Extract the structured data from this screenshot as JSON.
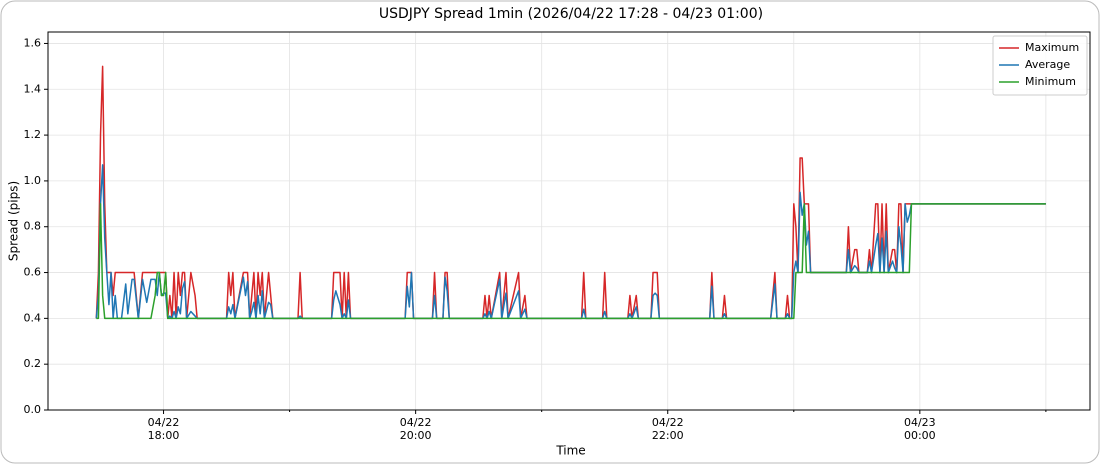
{
  "chart_data": {
    "type": "line",
    "title": "USDJPY Spread 1min (2026/04/22 17:28 - 04/23 01:00)",
    "x_label": "Time",
    "y_label": "Spread (pips)",
    "grid": true,
    "legend": "upper right",
    "xlim": [
      "2026-04-22 17:05",
      "2026-04-23 01:21"
    ],
    "xticks": [
      {
        "value": "2026-04-22 18:00",
        "label": "04/22\n18:00"
      },
      {
        "value": "2026-04-22 20:00",
        "label": "04/22\n20:00"
      },
      {
        "value": "2026-04-22 22:00",
        "label": "04/22\n22:00"
      },
      {
        "value": "2026-04-23 00:00",
        "label": "04/23\n00:00"
      }
    ],
    "xminorticks": [
      "2026-04-22 19:00",
      "2026-04-22 21:00",
      "2026-04-22 23:00",
      "2026-04-23 01:00"
    ],
    "ylim": [
      0,
      1.65
    ],
    "yticks": [
      {
        "value": 0,
        "label": "0.0"
      },
      0.2,
      0.4,
      0.6,
      0.8,
      {
        "value": 1,
        "label": "1.0"
      },
      1.2,
      1.4,
      1.6
    ],
    "x": [
      "2026-04-22 17:28",
      "2026-04-22 17:29",
      "2026-04-22 17:30",
      "2026-04-22 17:31",
      "2026-04-22 17:32",
      "2026-04-22 17:33",
      "2026-04-22 17:34",
      "2026-04-22 17:35",
      "2026-04-22 17:36",
      "2026-04-22 17:37",
      "2026-04-22 17:38",
      "2026-04-22 17:40",
      "2026-04-22 17:42",
      "2026-04-22 17:43",
      "2026-04-22 17:45",
      "2026-04-22 17:46",
      "2026-04-22 17:48",
      "2026-04-22 17:50",
      "2026-04-22 17:52",
      "2026-04-22 17:54",
      "2026-04-22 17:56",
      "2026-04-22 17:57",
      "2026-04-22 17:58",
      "2026-04-22 17:59",
      "2026-04-22 18:00",
      "2026-04-22 18:01",
      "2026-04-22 18:02",
      "2026-04-22 18:03",
      "2026-04-22 18:04",
      "2026-04-22 18:05",
      "2026-04-22 18:06",
      "2026-04-22 18:07",
      "2026-04-22 18:08",
      "2026-04-22 18:09",
      "2026-04-22 18:10",
      "2026-04-22 18:11",
      "2026-04-22 18:13",
      "2026-04-22 18:15",
      "2026-04-22 18:16",
      "2026-04-22 18:30",
      "2026-04-22 18:31",
      "2026-04-22 18:32",
      "2026-04-22 18:33",
      "2026-04-22 18:34",
      "2026-04-22 18:38",
      "2026-04-22 18:39",
      "2026-04-22 18:40",
      "2026-04-22 18:41",
      "2026-04-22 18:42",
      "2026-04-22 18:43",
      "2026-04-22 18:44",
      "2026-04-22 18:45",
      "2026-04-22 18:46",
      "2026-04-22 18:47",
      "2026-04-22 18:48",
      "2026-04-22 18:50",
      "2026-04-22 18:51",
      "2026-04-22 18:52",
      "2026-04-22 19:04",
      "2026-04-22 19:05",
      "2026-04-22 19:06",
      "2026-04-22 19:20",
      "2026-04-22 19:21",
      "2026-04-22 19:22",
      "2026-04-22 19:24",
      "2026-04-22 19:25",
      "2026-04-22 19:26",
      "2026-04-22 19:27",
      "2026-04-22 19:28",
      "2026-04-22 19:29",
      "2026-04-22 19:55",
      "2026-04-22 19:56",
      "2026-04-22 19:57",
      "2026-04-22 19:58",
      "2026-04-22 19:59",
      "2026-04-22 20:08",
      "2026-04-22 20:09",
      "2026-04-22 20:10",
      "2026-04-22 20:13",
      "2026-04-22 20:14",
      "2026-04-22 20:15",
      "2026-04-22 20:16",
      "2026-04-22 20:32",
      "2026-04-22 20:33",
      "2026-04-22 20:34",
      "2026-04-22 20:35",
      "2026-04-22 20:36",
      "2026-04-22 20:40",
      "2026-04-22 20:41",
      "2026-04-22 20:43",
      "2026-04-22 20:44",
      "2026-04-22 20:49",
      "2026-04-22 20:50",
      "2026-04-22 20:52",
      "2026-04-22 20:53",
      "2026-04-22 21:19",
      "2026-04-22 21:20",
      "2026-04-22 21:21",
      "2026-04-22 21:29",
      "2026-04-22 21:30",
      "2026-04-22 21:31",
      "2026-04-22 21:41",
      "2026-04-22 21:42",
      "2026-04-22 21:43",
      "2026-04-22 21:45",
      "2026-04-22 21:46",
      "2026-04-22 21:52",
      "2026-04-22 21:53",
      "2026-04-22 21:54",
      "2026-04-22 21:55",
      "2026-04-22 21:56",
      "2026-04-22 22:20",
      "2026-04-22 22:21",
      "2026-04-22 22:22",
      "2026-04-22 22:26",
      "2026-04-22 22:27",
      "2026-04-22 22:28",
      "2026-04-22 22:49",
      "2026-04-22 22:51",
      "2026-04-22 22:52",
      "2026-04-22 22:56",
      "2026-04-22 22:57",
      "2026-04-22 22:58",
      "2026-04-22 22:59",
      "2026-04-22 23:00",
      "2026-04-22 23:01",
      "2026-04-22 23:02",
      "2026-04-22 23:03",
      "2026-04-22 23:04",
      "2026-04-22 23:05",
      "2026-04-22 23:06",
      "2026-04-22 23:07",
      "2026-04-22 23:08",
      "2026-04-22 23:25",
      "2026-04-22 23:26",
      "2026-04-22 23:27",
      "2026-04-22 23:29",
      "2026-04-22 23:30",
      "2026-04-22 23:31",
      "2026-04-22 23:35",
      "2026-04-22 23:36",
      "2026-04-22 23:37",
      "2026-04-22 23:39",
      "2026-04-22 23:40",
      "2026-04-22 23:41",
      "2026-04-22 23:42",
      "2026-04-22 23:43",
      "2026-04-22 23:44",
      "2026-04-22 23:45",
      "2026-04-22 23:47",
      "2026-04-22 23:48",
      "2026-04-22 23:49",
      "2026-04-22 23:50",
      "2026-04-22 23:51",
      "2026-04-22 23:52",
      "2026-04-22 23:53",
      "2026-04-22 23:54",
      "2026-04-22 23:55",
      "2026-04-22 23:56",
      "2026-04-23 01:00"
    ],
    "series": [
      {
        "name": "Maximum",
        "color": "#d62728",
        "values": [
          0.4,
          0.6,
          1.2,
          1.5,
          0.9,
          0.6,
          0.6,
          0.6,
          0.5,
          0.6,
          0.6,
          0.6,
          0.6,
          0.6,
          0.6,
          0.6,
          0.4,
          0.6,
          0.6,
          0.6,
          0.6,
          0.6,
          0.6,
          0.6,
          0.6,
          0.6,
          0.4,
          0.5,
          0.4,
          0.6,
          0.4,
          0.6,
          0.5,
          0.6,
          0.6,
          0.4,
          0.6,
          0.5,
          0.4,
          0.4,
          0.6,
          0.5,
          0.6,
          0.4,
          0.6,
          0.6,
          0.6,
          0.4,
          0.5,
          0.6,
          0.4,
          0.6,
          0.5,
          0.6,
          0.4,
          0.6,
          0.5,
          0.4,
          0.4,
          0.6,
          0.4,
          0.4,
          0.6,
          0.6,
          0.6,
          0.4,
          0.6,
          0.4,
          0.6,
          0.4,
          0.4,
          0.6,
          0.6,
          0.6,
          0.4,
          0.4,
          0.6,
          0.4,
          0.4,
          0.6,
          0.6,
          0.4,
          0.4,
          0.5,
          0.4,
          0.5,
          0.4,
          0.6,
          0.4,
          0.6,
          0.4,
          0.6,
          0.4,
          0.5,
          0.4,
          0.4,
          0.6,
          0.4,
          0.4,
          0.6,
          0.4,
          0.4,
          0.5,
          0.4,
          0.5,
          0.4,
          0.4,
          0.6,
          0.6,
          0.6,
          0.4,
          0.4,
          0.6,
          0.4,
          0.4,
          0.5,
          0.4,
          0.4,
          0.6,
          0.4,
          0.4,
          0.5,
          0.4,
          0.4,
          0.9,
          0.8,
          0.6,
          1.1,
          1.1,
          0.9,
          0.9,
          0.9,
          0.6,
          0.6,
          0.8,
          0.6,
          0.7,
          0.7,
          0.6,
          0.6,
          0.7,
          0.6,
          0.9,
          0.9,
          0.6,
          0.9,
          0.6,
          0.9,
          0.6,
          0.7,
          0.7,
          0.6,
          0.9,
          0.9,
          0.6,
          0.9,
          0.9,
          0.9,
          0.9,
          0.9
        ]
      },
      {
        "name": "Average",
        "color": "#1f77b4",
        "values": [
          0.4,
          0.5,
          0.9,
          1.07,
          0.75,
          0.6,
          0.46,
          0.6,
          0.4,
          0.5,
          0.4,
          0.4,
          0.55,
          0.42,
          0.57,
          0.57,
          0.4,
          0.57,
          0.47,
          0.57,
          0.57,
          0.5,
          0.6,
          0.5,
          0.51,
          0.51,
          0.4,
          0.41,
          0.4,
          0.43,
          0.4,
          0.45,
          0.42,
          0.53,
          0.56,
          0.4,
          0.43,
          0.41,
          0.4,
          0.4,
          0.45,
          0.42,
          0.46,
          0.4,
          0.58,
          0.5,
          0.56,
          0.4,
          0.43,
          0.47,
          0.4,
          0.5,
          0.42,
          0.52,
          0.4,
          0.47,
          0.46,
          0.4,
          0.4,
          0.41,
          0.4,
          0.4,
          0.48,
          0.52,
          0.46,
          0.4,
          0.42,
          0.4,
          0.48,
          0.4,
          0.4,
          0.54,
          0.45,
          0.6,
          0.4,
          0.4,
          0.5,
          0.4,
          0.4,
          0.58,
          0.52,
          0.4,
          0.4,
          0.42,
          0.4,
          0.43,
          0.4,
          0.57,
          0.4,
          0.51,
          0.4,
          0.52,
          0.4,
          0.44,
          0.4,
          0.4,
          0.44,
          0.4,
          0.4,
          0.43,
          0.4,
          0.4,
          0.42,
          0.4,
          0.45,
          0.4,
          0.4,
          0.5,
          0.51,
          0.5,
          0.4,
          0.4,
          0.54,
          0.4,
          0.4,
          0.42,
          0.4,
          0.4,
          0.55,
          0.4,
          0.4,
          0.42,
          0.4,
          0.4,
          0.6,
          0.65,
          0.6,
          0.95,
          0.85,
          0.9,
          0.72,
          0.78,
          0.6,
          0.6,
          0.7,
          0.6,
          0.63,
          0.62,
          0.6,
          0.6,
          0.65,
          0.6,
          0.72,
          0.77,
          0.6,
          0.75,
          0.6,
          0.78,
          0.6,
          0.65,
          0.62,
          0.6,
          0.8,
          0.72,
          0.6,
          0.9,
          0.82,
          0.85,
          0.9,
          0.9
        ]
      },
      {
        "name": "Minimum",
        "color": "#2ca02c",
        "values": [
          0.4,
          0.4,
          0.9,
          0.5,
          0.4,
          0.4,
          0.4,
          0.4,
          0.4,
          0.4,
          0.4,
          0.4,
          0.4,
          0.4,
          0.4,
          0.4,
          0.4,
          0.4,
          0.4,
          0.4,
          0.5,
          0.6,
          0.6,
          0.5,
          0.5,
          0.6,
          0.4,
          0.4,
          0.4,
          0.4,
          0.4,
          0.4,
          0.4,
          0.4,
          0.4,
          0.4,
          0.4,
          0.4,
          0.4,
          0.4,
          0.4,
          0.4,
          0.4,
          0.4,
          0.4,
          0.4,
          0.4,
          0.4,
          0.4,
          0.4,
          0.4,
          0.4,
          0.4,
          0.4,
          0.4,
          0.4,
          0.4,
          0.4,
          0.4,
          0.4,
          0.4,
          0.4,
          0.4,
          0.4,
          0.4,
          0.4,
          0.4,
          0.4,
          0.4,
          0.4,
          0.4,
          0.4,
          0.4,
          0.4,
          0.4,
          0.4,
          0.4,
          0.4,
          0.4,
          0.4,
          0.4,
          0.4,
          0.4,
          0.4,
          0.4,
          0.4,
          0.4,
          0.4,
          0.4,
          0.4,
          0.4,
          0.4,
          0.4,
          0.4,
          0.4,
          0.4,
          0.4,
          0.4,
          0.4,
          0.4,
          0.4,
          0.4,
          0.4,
          0.4,
          0.4,
          0.4,
          0.4,
          0.4,
          0.4,
          0.4,
          0.4,
          0.4,
          0.4,
          0.4,
          0.4,
          0.4,
          0.4,
          0.4,
          0.4,
          0.4,
          0.4,
          0.4,
          0.4,
          0.4,
          0.4,
          0.6,
          0.6,
          0.6,
          0.6,
          0.9,
          0.6,
          0.6,
          0.6,
          0.6,
          0.6,
          0.6,
          0.6,
          0.6,
          0.6,
          0.6,
          0.6,
          0.6,
          0.6,
          0.6,
          0.6,
          0.6,
          0.6,
          0.6,
          0.6,
          0.6,
          0.6,
          0.6,
          0.6,
          0.6,
          0.6,
          0.6,
          0.6,
          0.6,
          0.9,
          0.9
        ]
      }
    ]
  }
}
